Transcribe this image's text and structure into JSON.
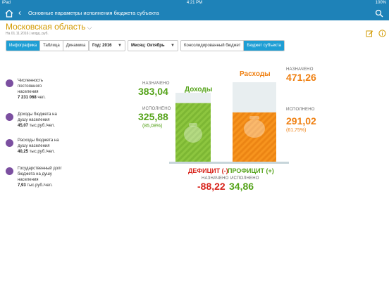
{
  "status": {
    "device": "iPad",
    "time": "4:21 PM",
    "battery": "100%"
  },
  "nav": {
    "title": "Основные параметры исполнения бюджета субъекта"
  },
  "region": {
    "name": "Московская область"
  },
  "meta": {
    "date": "На 01.11.2016",
    "unit": "млрд. руб."
  },
  "tabs": [
    {
      "label": "Инфографика",
      "active": true
    },
    {
      "label": "Таблица",
      "active": false
    },
    {
      "label": "Динамика",
      "active": false
    }
  ],
  "filters": {
    "year": "Год: 2016",
    "month": "Месяц: Октябрь"
  },
  "budget_tabs": [
    {
      "label": "Консолидированный бюджет",
      "active": false
    },
    {
      "label": "Бюджет субъекта",
      "active": true
    }
  ],
  "stats": [
    {
      "label_lines": [
        "Численность",
        "постоянного",
        "населения"
      ],
      "value": "7 231 068",
      "unit": "чел.",
      "icon": "people-icon"
    },
    {
      "label_lines": [
        "Доходы бюджета на",
        "душу населения"
      ],
      "value": "45,07",
      "unit": "тыс.руб./чел.",
      "icon": "income-icon"
    },
    {
      "label_lines": [
        "Расходы бюджета на",
        "душу населения"
      ],
      "value": "40,25",
      "unit": "тыс.руб./чел.",
      "icon": "expense-icon"
    },
    {
      "label_lines": [
        "Государственный долг",
        "бюджета на душу",
        "населения"
      ],
      "value": "7,93",
      "unit": "тыс.руб./чел.",
      "icon": "debt-icon"
    }
  ],
  "income": {
    "title": "Доходы",
    "planned_label": "НАЗНАЧЕНО",
    "planned": "383,04",
    "executed_label": "ИСПОЛНЕНО",
    "executed": "325,88",
    "executed_pct": "(85,08%)",
    "fill_fraction": 0.85
  },
  "expense": {
    "title": "Расходы",
    "planned_label": "НАЗНАЧЕНО",
    "planned": "471,26",
    "executed_label": "ИСПОЛНЕНО",
    "executed": "291,02",
    "executed_pct": "(61,75%)",
    "fill_fraction": 0.62
  },
  "balance": {
    "deficit_label": "ДЕФИЦИТ (-)",
    "surplus_label": "ПРОФИЦИТ (+)",
    "planned_label": "НАЗНАЧЕНО",
    "executed_label": "ИСПОЛНЕНО",
    "planned_value": "-88,22",
    "executed_value": "34,86"
  },
  "colors": {
    "header": "#1e82b8",
    "green": "#55a31a",
    "orange": "#ef8012",
    "red": "#d8241c",
    "accent_tab": "#1e9ed4",
    "region": "#d29a00"
  }
}
